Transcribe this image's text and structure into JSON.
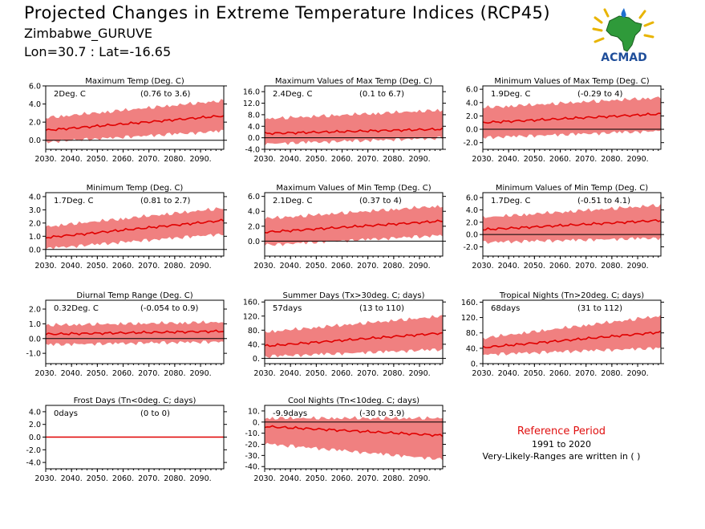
{
  "header": {
    "title": "Projected Changes in Extreme Temperature Indices (RCP45)",
    "location": "Zimbabwe_GURUVE",
    "coords": "Lon=30.7 : Lat=-16.65"
  },
  "logo": {
    "text": "ACMAD",
    "icon": "africa-map-icon"
  },
  "reference": {
    "title": "Reference Period",
    "years": "1991 to 2020",
    "note": "Very-Likely-Ranges are written in ( )"
  },
  "colors": {
    "median_line": "#e00000",
    "range_band": "#f08080",
    "zero_line": "#000000"
  },
  "chart_data": [
    {
      "type": "area",
      "title": "Maximum Temp (Deg. C)",
      "change": "2Deg. C",
      "range_text": "(0.76 to 3.6)",
      "xlim": [
        2030,
        2099
      ],
      "xticks": [
        "2030.",
        "2040.",
        "2050.",
        "2060.",
        "2070.",
        "2080.",
        "2090."
      ],
      "ylim": [
        -1,
        6
      ],
      "yticks": [
        "6.0",
        "4.0",
        "2.0",
        "0.0"
      ],
      "median_start": 1.1,
      "median_end": 2.7,
      "low_start": 0.0,
      "low_end": 1.2,
      "high_start": 2.3,
      "high_end": 4.2
    },
    {
      "type": "area",
      "title": "Maximum Values of Max Temp (Deg. C)",
      "change": "2.4Deg. C",
      "range_text": "(0.1 to 6.7)",
      "xlim": [
        2030,
        2099
      ],
      "xticks": [
        "2030.",
        "2040.",
        "2050.",
        "2060.",
        "2070.",
        "2080.",
        "2090."
      ],
      "ylim": [
        -4,
        18
      ],
      "yticks": [
        "16.0",
        "12.0",
        "8.0",
        "4.0",
        "0.0",
        "-4.0"
      ],
      "median_start": 1.5,
      "median_end": 3.0,
      "low_start": -1.5,
      "low_end": 0.5,
      "high_start": 6.0,
      "high_end": 9.0
    },
    {
      "type": "area",
      "title": "Minimum Values of Max Temp (Deg. C)",
      "change": "1.9Deg. C",
      "range_text": "(-0.29 to 4)",
      "xlim": [
        2030,
        2099
      ],
      "xticks": [
        "2030.",
        "2040.",
        "2050.",
        "2060.",
        "2070.",
        "2080.",
        "2090."
      ],
      "ylim": [
        -3,
        6.5
      ],
      "yticks": [
        "6.0",
        "4.0",
        "2.0",
        "0.0",
        "-2.0"
      ],
      "median_start": 1.0,
      "median_end": 2.3,
      "low_start": -1.0,
      "low_end": 0.0,
      "high_start": 3.0,
      "high_end": 4.5
    },
    {
      "type": "area",
      "title": "Minimum Temp (Deg. C)",
      "change": "1.7Deg. C",
      "range_text": "(0.81 to 2.7)",
      "xlim": [
        2030,
        2099
      ],
      "xticks": [
        "2030.",
        "2040.",
        "2050.",
        "2060.",
        "2070.",
        "2080.",
        "2090."
      ],
      "ylim": [
        -0.5,
        4.3
      ],
      "yticks": [
        "4.0",
        "3.0",
        "2.0",
        "1.0",
        "0.0"
      ],
      "median_start": 0.9,
      "median_end": 2.2,
      "low_start": 0.2,
      "low_end": 1.3,
      "high_start": 1.6,
      "high_end": 3.0
    },
    {
      "type": "area",
      "title": "Maximum Values of Min Temp (Deg. C)",
      "change": "2.1Deg. C",
      "range_text": "(0.37 to 4)",
      "xlim": [
        2030,
        2099
      ],
      "xticks": [
        "2030.",
        "2040.",
        "2050.",
        "2060.",
        "2070.",
        "2080.",
        "2090."
      ],
      "ylim": [
        -2,
        6.5
      ],
      "yticks": [
        "6.0",
        "4.0",
        "2.0",
        "0.0"
      ],
      "median_start": 1.2,
      "median_end": 2.7,
      "low_start": -0.3,
      "low_end": 1.0,
      "high_start": 2.8,
      "high_end": 4.5
    },
    {
      "type": "area",
      "title": "Minimum Values of Min Temp (Deg. C)",
      "change": "1.7Deg. C",
      "range_text": "(-0.51 to 4.1)",
      "xlim": [
        2030,
        2099
      ],
      "xticks": [
        "2030.",
        "2040.",
        "2050.",
        "2060.",
        "2070.",
        "2080.",
        "2090."
      ],
      "ylim": [
        -3.5,
        6.8
      ],
      "yticks": [
        "6.0",
        "4.0",
        "2.0",
        "0.0",
        "-2.0"
      ],
      "median_start": 0.8,
      "median_end": 2.3,
      "low_start": -1.0,
      "low_end": -0.3,
      "high_start": 2.5,
      "high_end": 4.5
    },
    {
      "type": "area",
      "title": "Diurnal Temp Range (Deg. C)",
      "change": "0.32Deg. C",
      "range_text": "(-0.054 to 0.9)",
      "xlim": [
        2030,
        2099
      ],
      "xticks": [
        "2030.",
        "2040.",
        "2050.",
        "2060.",
        "2070.",
        "2080.",
        "2090."
      ],
      "ylim": [
        -1.7,
        2.6
      ],
      "yticks": [
        "2.0",
        "1.0",
        "0.0",
        "-1.0"
      ],
      "median_start": 0.3,
      "median_end": 0.5,
      "low_start": -0.3,
      "low_end": -0.1,
      "high_start": 0.8,
      "high_end": 1.0
    },
    {
      "type": "area",
      "title": "Summer Days (Tx>30deg. C; days)",
      "change": "57days",
      "range_text": "(13 to 110)",
      "xlim": [
        2030,
        2099
      ],
      "xticks": [
        "2030.",
        "2040.",
        "2050.",
        "2060.",
        "2070.",
        "2080.",
        "2090."
      ],
      "ylim": [
        -15,
        165
      ],
      "yticks": [
        "160.",
        "120.",
        "80.",
        "40.",
        "0."
      ],
      "median_start": 35,
      "median_end": 72,
      "low_start": 10,
      "low_end": 30,
      "high_start": 70,
      "high_end": 115
    },
    {
      "type": "area",
      "title": "Tropical Nights (Tn>20deg. C; days)",
      "change": "68days",
      "range_text": "(31 to 112)",
      "xlim": [
        2030,
        2099
      ],
      "xticks": [
        "2030.",
        "2040.",
        "2050.",
        "2060.",
        "2070.",
        "2080.",
        "2090."
      ],
      "ylim": [
        0,
        165
      ],
      "yticks": [
        "160.",
        "120.",
        "80.",
        "40.",
        "0."
      ],
      "median_start": 42,
      "median_end": 82,
      "low_start": 28,
      "low_end": 45,
      "high_start": 62,
      "high_end": 120
    },
    {
      "type": "area",
      "title": "Frost Days (Tn<0deg. C; days)",
      "change": "0days",
      "range_text": "(0 to 0)",
      "xlim": [
        2030,
        2099
      ],
      "xticks": [
        "2030.",
        "2040.",
        "2050.",
        "2060.",
        "2070.",
        "2080.",
        "2090."
      ],
      "ylim": [
        -5,
        5
      ],
      "yticks": [
        "4.0",
        "2.0",
        "0.0",
        "-2.0",
        "-4.0"
      ],
      "median_start": 0,
      "median_end": 0,
      "low_start": 0,
      "low_end": 0,
      "high_start": 0,
      "high_end": 0
    },
    {
      "type": "area",
      "title": "Cool Nights (Tn<10deg. C; days)",
      "change": "-9.9days",
      "range_text": "(-30 to 3.9)",
      "xlim": [
        2030,
        2099
      ],
      "xticks": [
        "2030.",
        "2040.",
        "2050.",
        "2060.",
        "2070.",
        "2080.",
        "2090."
      ],
      "ylim": [
        -42,
        15
      ],
      "yticks": [
        "10.",
        "0.",
        "-10.",
        "-20.",
        "-30.",
        "-40."
      ],
      "median_start": -4,
      "median_end": -12,
      "low_start": -18,
      "low_end": -32,
      "high_start": 2,
      "high_end": 2
    }
  ]
}
